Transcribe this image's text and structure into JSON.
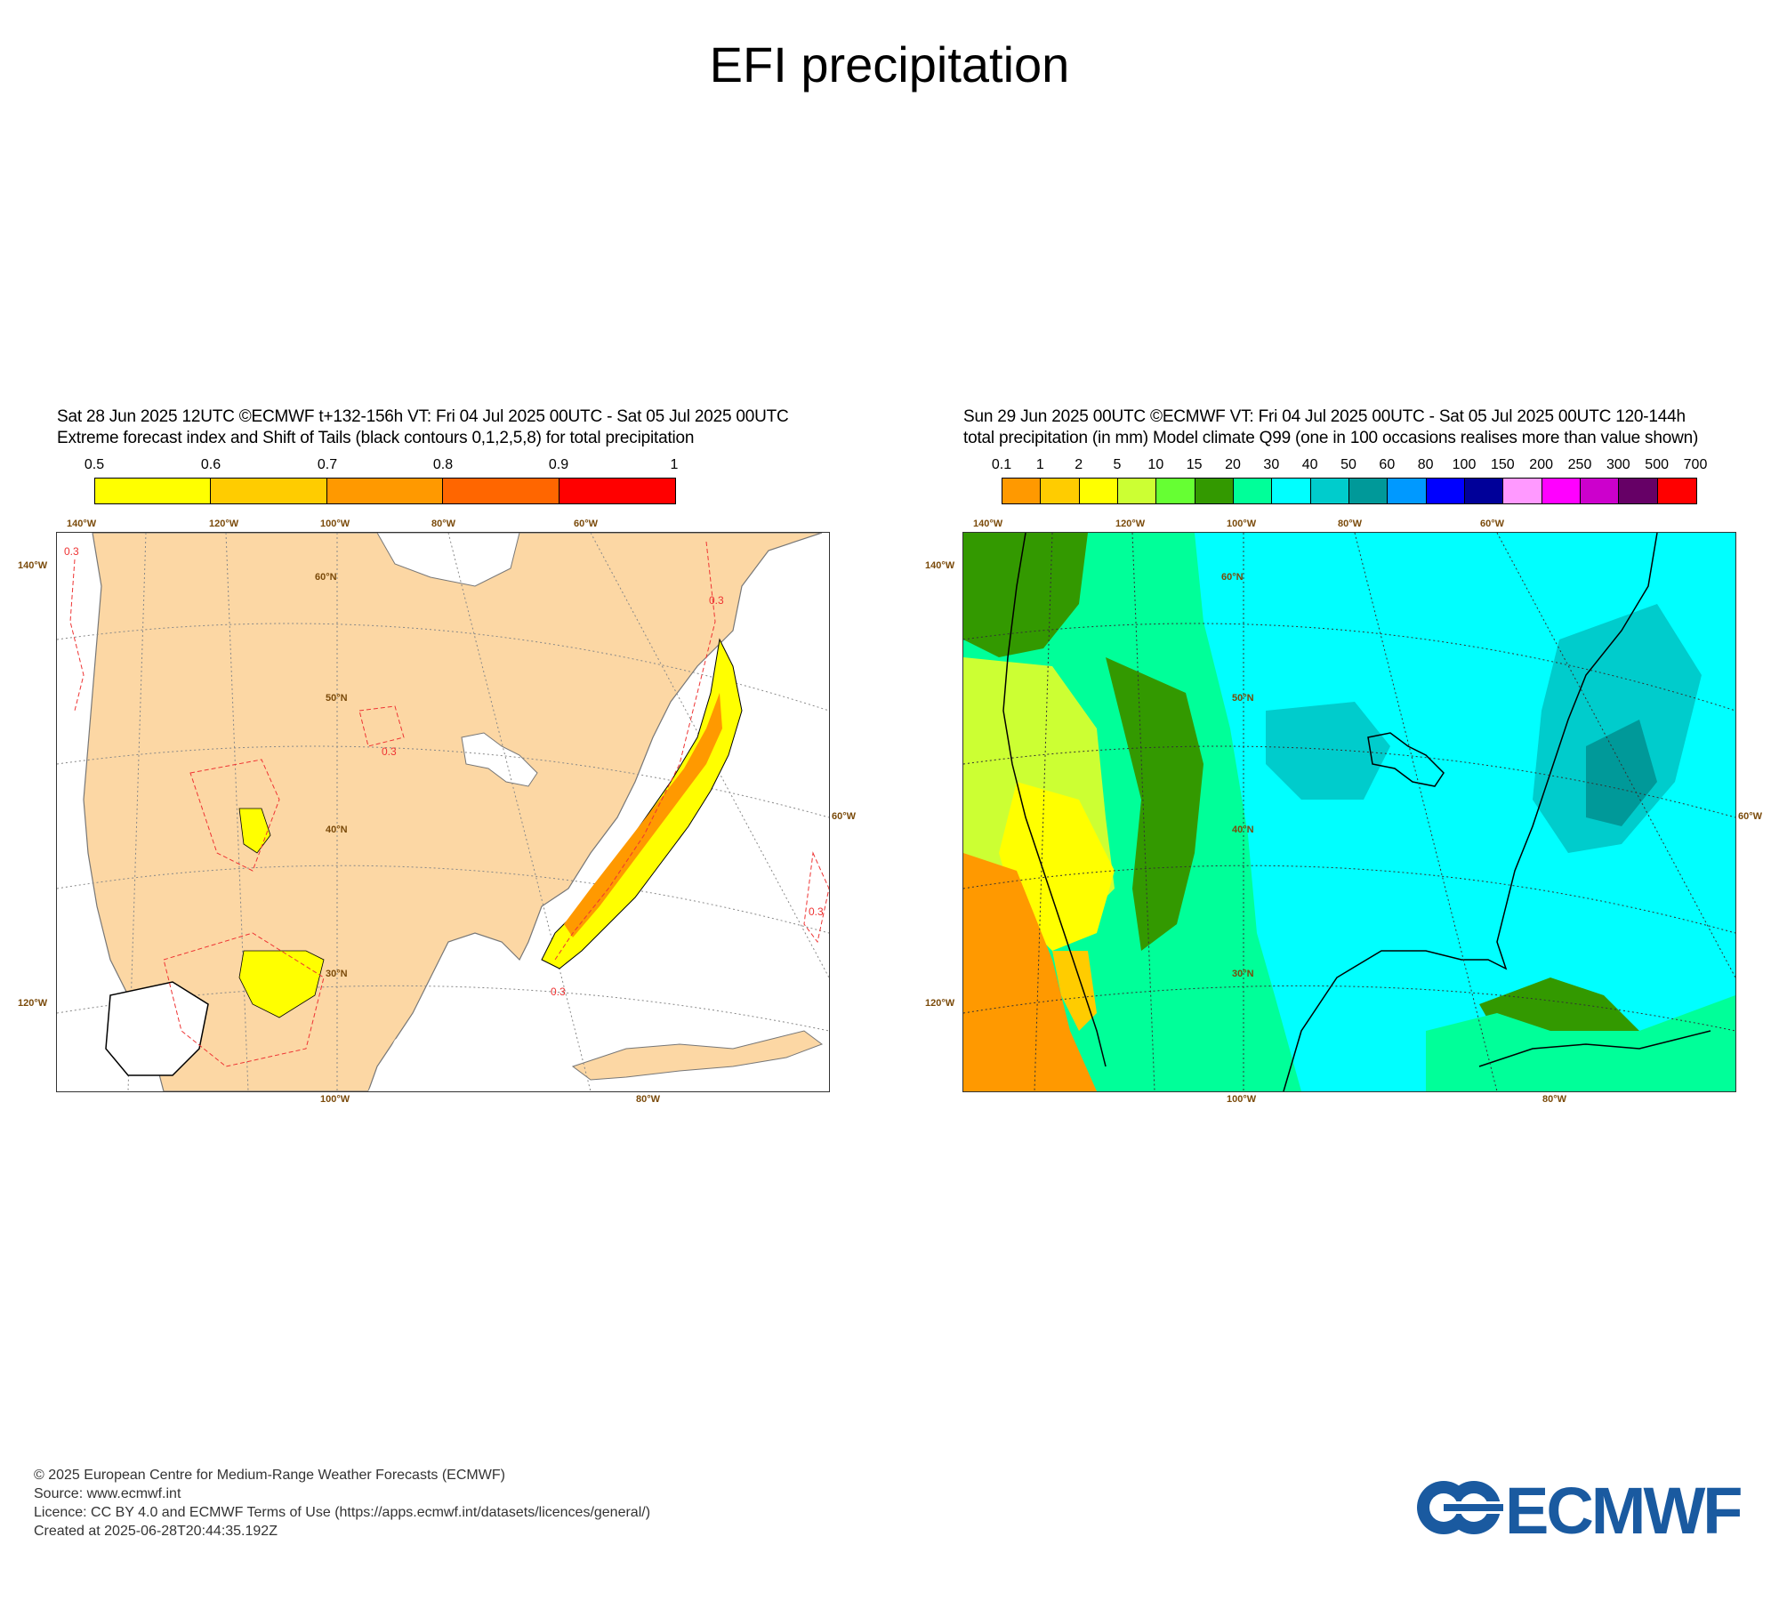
{
  "title": "EFI precipitation",
  "left_panel": {
    "header_line1": "Sat 28 Jun 2025 12UTC ©ECMWF t+132-156h  VT: Fri 04 Jul 2025 00UTC - Sat 05 Jul 2025 00UTC",
    "header_line2": "Extreme forecast index and Shift of Tails (black contours 0,1,2,5,8) for total precipitation",
    "colorbar_ticks": [
      "0.5",
      "0.6",
      "0.7",
      "0.8",
      "0.9",
      "1"
    ],
    "colorbar_colors": [
      "#ffff00",
      "#ffcc00",
      "#ff9900",
      "#ff6600",
      "#ff0000"
    ],
    "top_labels": [
      "140°W",
      "120°W",
      "100°W",
      "80°W",
      "60°W"
    ],
    "bottom_labels": [
      "100°W",
      "80°W"
    ],
    "left_labels": [
      "140°W",
      "120°W"
    ],
    "right_labels": [
      "60°W"
    ],
    "lat_labels": [
      "60°N",
      "50°N",
      "40°N",
      "30°N"
    ],
    "contour_labels": [
      "0.3",
      "0.3",
      "0.3",
      "0.3",
      "0.3"
    ]
  },
  "right_panel": {
    "header_line1": "Sun 29 Jun 2025 00UTC ©ECMWF VT: Fri 04 Jul 2025 00UTC - Sat 05 Jul 2025 00UTC   120-144h",
    "header_line2": "total precipitation (in mm)  Model climate Q99 (one in 100 occasions realises more than value shown)",
    "colorbar_ticks": [
      "0.1",
      "1",
      "2",
      "5",
      "10",
      "15",
      "20",
      "30",
      "40",
      "50",
      "60",
      "80",
      "100",
      "150",
      "200",
      "250",
      "300",
      "500",
      "700"
    ],
    "colorbar_colors": [
      "#ff9900",
      "#ffcc00",
      "#ffff00",
      "#ccff33",
      "#66ff33",
      "#339900",
      "#00ff99",
      "#00ffff",
      "#00cccc",
      "#009999",
      "#0099ff",
      "#0000ff",
      "#000099",
      "#ff99ff",
      "#ff00ff",
      "#cc00cc",
      "#660066",
      "#ff0000"
    ],
    "top_labels": [
      "140°W",
      "120°W",
      "100°W",
      "80°W",
      "60°W"
    ],
    "bottom_labels": [
      "100°W",
      "80°W"
    ],
    "left_labels": [
      "140°W",
      "120°W"
    ],
    "right_labels": [
      "60°W"
    ],
    "lat_labels": [
      "60°N",
      "50°N",
      "40°N",
      "30°N"
    ]
  },
  "footer": {
    "line1": "© 2025 European Centre for Medium-Range Weather Forecasts (ECMWF)",
    "line2": "Source: www.ecmwf.int",
    "line3": "Licence: CC BY 4.0 and ECMWF Terms of Use (https://apps.ecmwf.int/datasets/licences/general/)",
    "line4": "Created at 2025-06-28T20:44:35.192Z"
  },
  "logo_text": "ECMWF"
}
